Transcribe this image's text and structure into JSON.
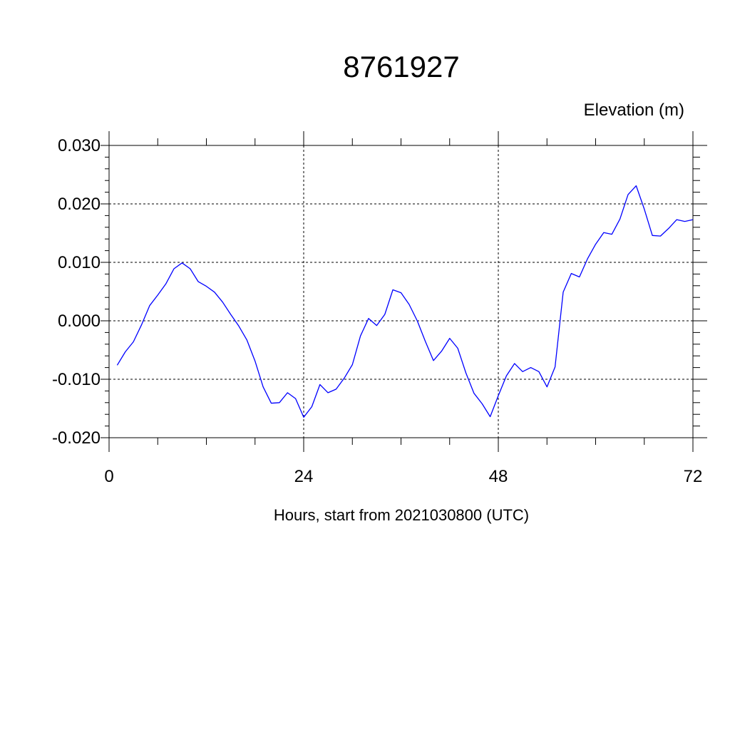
{
  "chart_data": {
    "type": "line",
    "title": "8761927",
    "ylabel": "Elevation (m)",
    "xlabel": "Hours, start from 2021030800 (UTC)",
    "xlim": [
      0,
      72
    ],
    "ylim": [
      -0.02,
      0.03
    ],
    "x_ticks": [
      0,
      24,
      48,
      72
    ],
    "x_tick_labels": [
      "0",
      "24",
      "48",
      "72"
    ],
    "y_ticks": [
      -0.02,
      -0.01,
      0.0,
      0.01,
      0.02,
      0.03
    ],
    "y_tick_labels": [
      "-0.020",
      "-0.010",
      "0.000",
      "0.010",
      "0.020",
      "0.030"
    ],
    "grid": "dashed",
    "line_color": "#0000ff",
    "series": [
      {
        "x": [
          1,
          2,
          3,
          4,
          5,
          6,
          7,
          8,
          9,
          10,
          11,
          12,
          13,
          14,
          15,
          16,
          17,
          18,
          19,
          20,
          21,
          22,
          23,
          24,
          25,
          26,
          27,
          28,
          29,
          30,
          31,
          32,
          33,
          34,
          35,
          36,
          37,
          38,
          39,
          40,
          41,
          42,
          43,
          44,
          45,
          46,
          47,
          48,
          49,
          50,
          51,
          52,
          53,
          54,
          55,
          56,
          57,
          58,
          59,
          60,
          61,
          62,
          63,
          64,
          65,
          66,
          67,
          68,
          69,
          70,
          71,
          72
        ],
        "values": [
          -0.0076,
          -0.0053,
          -0.0036,
          -0.0007,
          0.0026,
          0.0044,
          0.0063,
          0.0089,
          0.0099,
          0.0089,
          0.0067,
          0.0059,
          0.0049,
          0.0032,
          0.0011,
          -0.0009,
          -0.0033,
          -0.0069,
          -0.0113,
          -0.0141,
          -0.014,
          -0.0123,
          -0.0133,
          -0.0165,
          -0.0147,
          -0.0109,
          -0.0123,
          -0.0117,
          -0.0098,
          -0.0075,
          -0.0026,
          0.0004,
          -0.0008,
          0.0011,
          0.0053,
          0.0048,
          0.0028,
          0.0,
          -0.0035,
          -0.0068,
          -0.0052,
          -0.003,
          -0.0047,
          -0.0089,
          -0.0124,
          -0.0142,
          -0.0164,
          -0.0128,
          -0.0094,
          -0.0073,
          -0.0087,
          -0.008,
          -0.0087,
          -0.0113,
          -0.0079,
          0.0049,
          0.0081,
          0.0075,
          0.0106,
          0.0131,
          0.0151,
          0.0148,
          0.0174,
          0.0216,
          0.0231,
          0.0191,
          0.0146,
          0.0145,
          0.0158,
          0.0173,
          0.017,
          0.0173
        ]
      }
    ]
  }
}
